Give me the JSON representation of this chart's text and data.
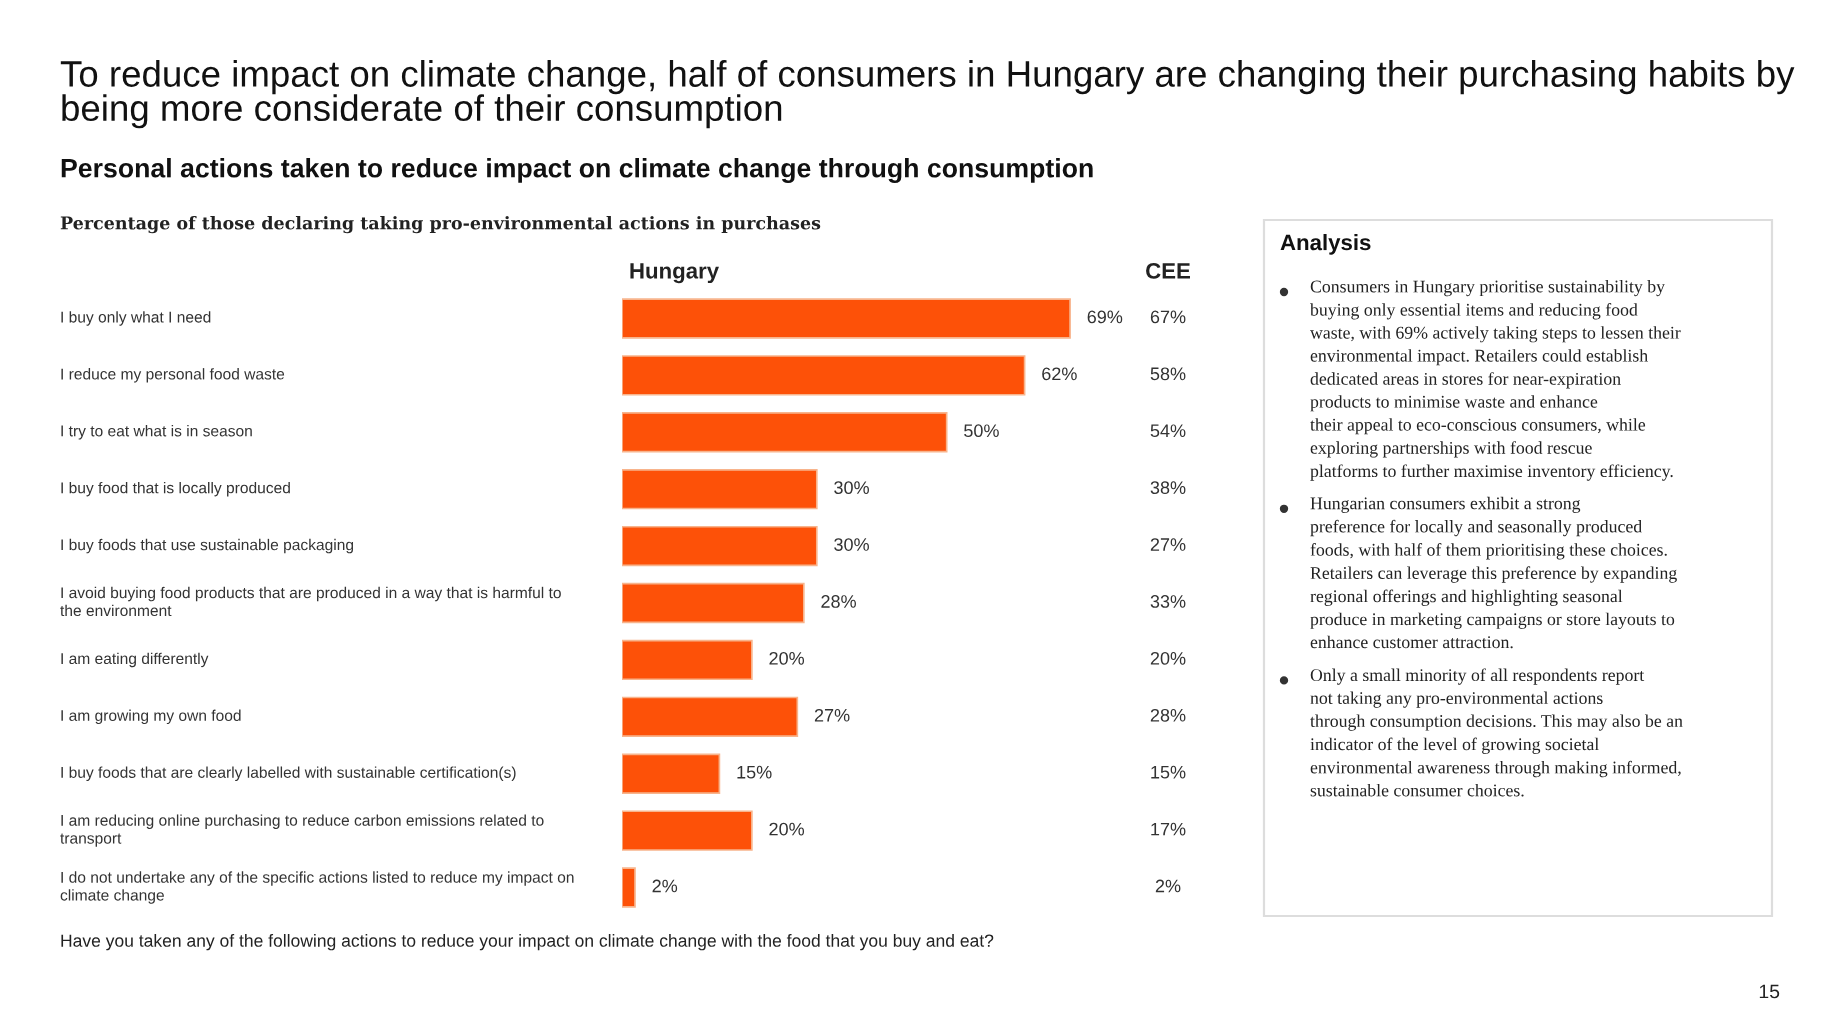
{
  "chart_data": [
    {
      "type": "bar",
      "orientation": "horizontal",
      "title": "To reduce impact on climate change, half of consumers in Hungary are changing their purchasing habits by being more considerate of their consumption",
      "subtitle": "Personal actions taken to reduce impact on climate change through consumption",
      "categories": [
        "I buy only what I need",
        "I reduce my personal food waste",
        "I try to eat what is in season",
        "I buy food that is locally produced",
        "I buy foods that use sustainable packaging",
        "I avoid buying food products that are produced in a way that is harmful to\nthe environment",
        "I am eating differently",
        "I am growing my own food",
        "I buy foods that are clearly labelled with sustainable certification(s)",
        "I am reducing online purchasing to reduce carbon emissions related to\ntransport",
        "I do not undertake any of the specific actions listed to reduce my impact on\nclimate change"
      ],
      "series": [
        {
          "name": "Hungary",
          "type": "bar",
          "color": "#fd5108",
          "values": [
            69,
            62,
            50,
            30,
            30,
            28,
            20,
            27,
            15,
            20,
            2
          ],
          "value_labels": [
            "69%",
            "62%",
            "50%",
            "30%",
            "30%",
            "28%",
            "20%",
            "27%",
            "15%",
            "20%",
            "2%"
          ]
        }
      ],
      "legend": false,
      "annotations": [
        "Percentage of those declaring taking pro-environmental actions in purchases",
        "Have you taken any of the following actions to reduce your impact on climate change with the food that you buy and eat?",
        "15",
        "CEE",
        "67%",
        "58%",
        "54%",
        "38%",
        "27%",
        "33%",
        "20%",
        "28%",
        "15%",
        "17%",
        "2%"
      ]
    },
    {
      "type": "other",
      "title": "Analysis",
      "annotations": [
        "Consumers in Hungary prioritise sustainability by\nbuying only essential items and reducing food\nwaste, with 69% actively taking steps to lessen their\nenvironmental impact. Retailers could establish\ndedicated areas in stores for near-expiration\nproducts to minimise waste and enhance\ntheir appeal to eco-conscious consumers, while\nexploring partnerships with food rescue\nplatforms to further maximise inventory efficiency.",
        "Hungarian consumers exhibit a strong\npreference for locally and seasonally produced\nfoods, with half of them prioritising these choices.\nRetailers can leverage this preference by expanding\nregional offerings and highlighting seasonal\nproduce in marketing campaigns or store layouts to\nenhance customer attraction.",
        "Only a small minority of all respondents report\nnot taking any pro-environmental actions\nthrough consumption decisions. This may also be an\nindicator of the level of growing societal\nenvironmental awareness through making informed,\nsustainable consumer choices."
      ]
    }
  ]
}
